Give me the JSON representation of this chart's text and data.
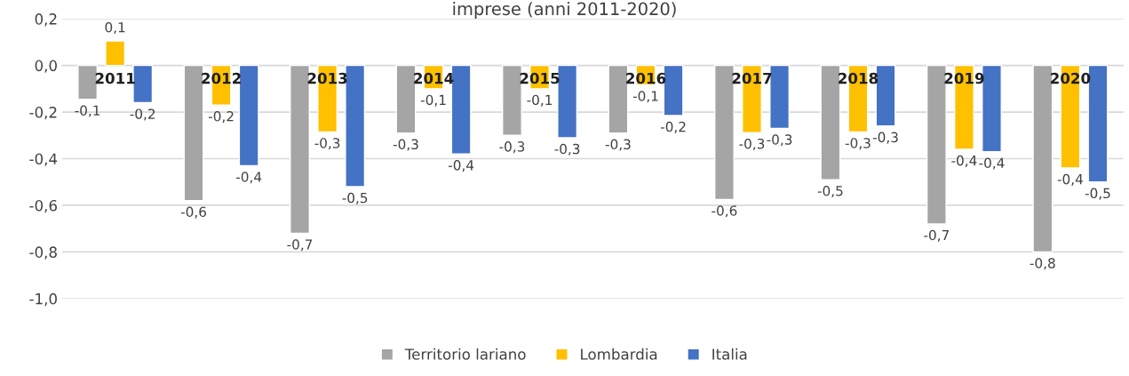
{
  "chart_data": {
    "type": "bar",
    "title": "imprese (anni 2011-2020)",
    "categories": [
      "2011",
      "2012",
      "2013",
      "2014",
      "2015",
      "2016",
      "2017",
      "2018",
      "2019",
      "2020"
    ],
    "series": [
      {
        "name": "Territorio lariano",
        "color": "#a5a5a5",
        "values": [
          -0.145,
          -0.58,
          -0.72,
          -0.29,
          -0.3,
          -0.29,
          -0.575,
          -0.49,
          -0.68,
          -0.8
        ],
        "value_labels": [
          "-0,1",
          "-0,6",
          "-0,7",
          "-0,3",
          "-0,3",
          "-0,3",
          "-0,6",
          "-0,5",
          "-0,7",
          "-0,8"
        ]
      },
      {
        "name": "Lombardia",
        "color": "#ffc000",
        "values": [
          0.105,
          -0.17,
          -0.285,
          -0.1,
          -0.1,
          -0.083,
          -0.288,
          -0.285,
          -0.36,
          -0.44
        ],
        "value_labels": [
          "0,1",
          "-0,2",
          "-0,3",
          "-0,1",
          "-0,1",
          "-0,1",
          "-0,3",
          "-0,3",
          "-0,4",
          "-0,4"
        ]
      },
      {
        "name": "Italia",
        "color": "#4472c4",
        "values": [
          -0.16,
          -0.43,
          -0.52,
          -0.38,
          -0.31,
          -0.215,
          -0.27,
          -0.26,
          -0.37,
          -0.5
        ],
        "value_labels": [
          "-0,2",
          "-0,4",
          "-0,5",
          "-0,4",
          "-0,3",
          "-0,2",
          "-0,3",
          "-0,3",
          "-0,4",
          "-0,5"
        ]
      }
    ],
    "ylim": [
      -1.0,
      0.2
    ],
    "yticks": [
      {
        "value": 0.2,
        "label": "0,2"
      },
      {
        "value": 0.0,
        "label": "0,0"
      },
      {
        "value": -0.2,
        "label": "-0,2"
      },
      {
        "value": -0.4,
        "label": "-0,4"
      },
      {
        "value": -0.6,
        "label": "-0,6"
      },
      {
        "value": -0.8,
        "label": "-0,8"
      },
      {
        "value": -1.0,
        "label": "-1,0"
      }
    ],
    "grid": "y",
    "legend": "bottom"
  }
}
